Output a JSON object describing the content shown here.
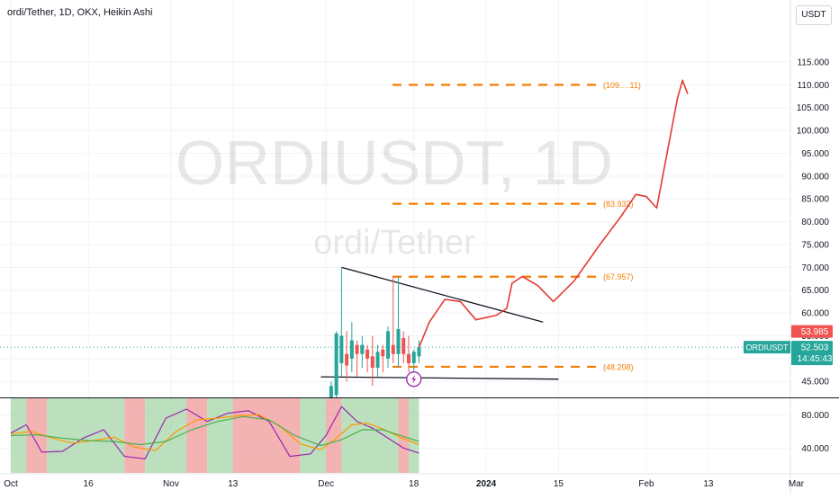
{
  "header": {
    "title": "ordi/Tether, 1D, OKX, Heikin Ashi",
    "currency": "USDT"
  },
  "watermark": {
    "symbol": "ORDIUSDT, 1D",
    "name": "ordi/Tether"
  },
  "colors": {
    "up": "#26a69a",
    "down": "#ef5350",
    "projection": "#e53935",
    "levels": "#f57c00",
    "trendline": "#131722",
    "last_price_line": "#26a69a",
    "stoch_k": "#9c27b0",
    "stoch_d": "#ff9800",
    "stoch_ma": "#4caf50",
    "zone_bull": "#a5d6a7",
    "zone_bear": "#ef9a9a"
  },
  "chart_data": {
    "type": "candlestick",
    "price_axis": {
      "ticks": [
        45,
        50,
        55,
        60,
        65,
        70,
        75,
        80,
        85,
        90,
        95,
        100,
        105,
        110,
        115
      ],
      "tick_labels": [
        "45.000",
        "50.000",
        "55.000",
        "60.000",
        "65.000",
        "70.000",
        "75.000",
        "80.000",
        "85.000",
        "90.000",
        "95.000",
        "100.000",
        "105.000",
        "110.000",
        "115.000"
      ],
      "range": [
        41.5,
        121.5
      ]
    },
    "time_axis": {
      "labels": [
        "Oct",
        "16",
        "Nov",
        "13",
        "Dec",
        "18",
        "2024",
        "15",
        "Feb",
        "13",
        "Mar"
      ],
      "dates": [
        "2023-10-01",
        "2023-10-16",
        "2023-11-01",
        "2023-11-13",
        "2023-12-01",
        "2023-12-18",
        "2024-01-01",
        "2024-01-15",
        "2024-02-01",
        "2024-02-13",
        "2024-03-01"
      ]
    },
    "candles": [
      {
        "date": "2023-12-02",
        "open": 40.0,
        "high": 45.0,
        "low": 40.0,
        "close": 44.0
      },
      {
        "date": "2023-12-03",
        "open": 42.0,
        "high": 56.0,
        "low": 41.0,
        "close": 55.5
      },
      {
        "date": "2023-12-04",
        "open": 49.0,
        "high": 70.0,
        "low": 46.0,
        "close": 55.0
      },
      {
        "date": "2023-12-05",
        "open": 51.0,
        "high": 56.0,
        "low": 45.0,
        "close": 48.5
      },
      {
        "date": "2023-12-06",
        "open": 50.0,
        "high": 58.0,
        "low": 47.0,
        "close": 54.0
      },
      {
        "date": "2023-12-07",
        "open": 53.0,
        "high": 54.0,
        "low": 46.0,
        "close": 51.0
      },
      {
        "date": "2023-12-08",
        "open": 51.0,
        "high": 55.0,
        "low": 48.0,
        "close": 53.0
      },
      {
        "date": "2023-12-09",
        "open": 52.0,
        "high": 53.0,
        "low": 47.0,
        "close": 50.0
      },
      {
        "date": "2023-12-10",
        "open": 50.5,
        "high": 55.0,
        "low": 44.0,
        "close": 48.0
      },
      {
        "date": "2023-12-11",
        "open": 48.0,
        "high": 53.0,
        "low": 46.0,
        "close": 51.5
      },
      {
        "date": "2023-12-12",
        "open": 52.0,
        "high": 53.0,
        "low": 47.0,
        "close": 50.5
      },
      {
        "date": "2023-12-13",
        "open": 50.0,
        "high": 57.0,
        "low": 48.0,
        "close": 56.0
      },
      {
        "date": "2023-12-14",
        "open": 53.0,
        "high": 68.0,
        "low": 49.0,
        "close": 51.0
      },
      {
        "date": "2023-12-15",
        "open": 51.0,
        "high": 68.0,
        "low": 48.0,
        "close": 56.5
      },
      {
        "date": "2023-12-16",
        "open": 54.5,
        "high": 56.0,
        "low": 49.0,
        "close": 51.0
      },
      {
        "date": "2023-12-17",
        "open": 51.0,
        "high": 55.0,
        "low": 47.0,
        "close": 49.0
      },
      {
        "date": "2023-12-18",
        "open": 49.0,
        "high": 52.0,
        "low": 47.0,
        "close": 51.5
      },
      {
        "date": "2023-12-19",
        "open": 50.5,
        "high": 54.0,
        "low": 49.0,
        "close": 52.5
      }
    ],
    "levels": [
      {
        "price": 110.0,
        "label": "(109.…11)"
      },
      {
        "price": 83.932,
        "label": "(83.932)"
      },
      {
        "price": 67.957,
        "label": "(67.957)"
      },
      {
        "price": 48.208,
        "label": "(48.208)"
      }
    ],
    "trendlines": [
      {
        "from": {
          "date": "2023-12-04",
          "price": 70.0
        },
        "to": {
          "date": "2024-01-12",
          "price": 58.0
        }
      },
      {
        "from": {
          "date": "2023-11-30",
          "price": 46.0
        },
        "to": {
          "date": "2024-01-15",
          "price": 45.5
        }
      }
    ],
    "projection": [
      {
        "date": "2023-12-19",
        "price": 52.5
      },
      {
        "date": "2023-12-21",
        "price": 58.0
      },
      {
        "date": "2023-12-24",
        "price": 63.0
      },
      {
        "date": "2023-12-27",
        "price": 62.5
      },
      {
        "date": "2023-12-30",
        "price": 58.5
      },
      {
        "date": "2024-01-03",
        "price": 59.5
      },
      {
        "date": "2024-01-05",
        "price": 61.0
      },
      {
        "date": "2024-01-06",
        "price": 66.5
      },
      {
        "date": "2024-01-08",
        "price": 68.0
      },
      {
        "date": "2024-01-11",
        "price": 66.0
      },
      {
        "date": "2024-01-14",
        "price": 62.5
      },
      {
        "date": "2024-01-18",
        "price": 67.0
      },
      {
        "date": "2024-01-23",
        "price": 75.0
      },
      {
        "date": "2024-01-27",
        "price": 81.0
      },
      {
        "date": "2024-01-30",
        "price": 86.0
      },
      {
        "date": "2024-02-01",
        "price": 85.5
      },
      {
        "date": "2024-02-03",
        "price": 83.0
      },
      {
        "date": "2024-02-05",
        "price": 95.0
      },
      {
        "date": "2024-02-07",
        "price": 107.0
      },
      {
        "date": "2024-02-08",
        "price": 111.0
      },
      {
        "date": "2024-02-09",
        "price": 108.0
      }
    ],
    "price_labels": [
      {
        "name": "previous-close",
        "text": "53.985",
        "price": 53.985,
        "color": "#ef5350"
      },
      {
        "name": "last-price",
        "text": "52.503",
        "price": 52.503,
        "color": "#26a69a",
        "symbol": "ORDIUSDT",
        "countdown": "14:45:43"
      }
    ],
    "oscillator": {
      "ticks": [
        40,
        80
      ],
      "tick_labels": [
        "40.000",
        "80.000"
      ],
      "range": [
        10,
        100
      ],
      "zones": [
        {
          "from": "2023-10-01",
          "to": "2023-10-04",
          "type": "bull"
        },
        {
          "from": "2023-10-04",
          "to": "2023-10-08",
          "type": "bear"
        },
        {
          "from": "2023-10-08",
          "to": "2023-10-23",
          "type": "bull"
        },
        {
          "from": "2023-10-23",
          "to": "2023-10-27",
          "type": "bear"
        },
        {
          "from": "2023-10-27",
          "to": "2023-11-04",
          "type": "bull"
        },
        {
          "from": "2023-11-04",
          "to": "2023-11-08",
          "type": "bear"
        },
        {
          "from": "2023-11-08",
          "to": "2023-11-13",
          "type": "bull"
        },
        {
          "from": "2023-11-13",
          "to": "2023-11-26",
          "type": "bear"
        },
        {
          "from": "2023-11-26",
          "to": "2023-12-01",
          "type": "bull"
        },
        {
          "from": "2023-12-01",
          "to": "2023-12-04",
          "type": "bear"
        },
        {
          "from": "2023-12-04",
          "to": "2023-12-15",
          "type": "bull"
        },
        {
          "from": "2023-12-15",
          "to": "2023-12-17",
          "type": "bear"
        },
        {
          "from": "2023-12-17",
          "to": "2023-12-19",
          "type": "bull"
        }
      ],
      "series": [
        {
          "name": "k",
          "dates": [
            "2023-10-01",
            "2023-10-04",
            "2023-10-07",
            "2023-10-11",
            "2023-10-15",
            "2023-10-19",
            "2023-10-23",
            "2023-10-27",
            "2023-10-31",
            "2023-11-04",
            "2023-11-08",
            "2023-11-12",
            "2023-11-16",
            "2023-11-20",
            "2023-11-24",
            "2023-11-28",
            "2023-12-01",
            "2023-12-04",
            "2023-12-07",
            "2023-12-10",
            "2023-12-13",
            "2023-12-16",
            "2023-12-19"
          ],
          "values": [
            58,
            68,
            35,
            36,
            52,
            62,
            30,
            27,
            76,
            87,
            72,
            82,
            85,
            72,
            30,
            33,
            55,
            90,
            72,
            64,
            52,
            40,
            34
          ]
        },
        {
          "name": "d",
          "dates": [
            "2023-10-01",
            "2023-10-05",
            "2023-10-09",
            "2023-10-13",
            "2023-10-17",
            "2023-10-21",
            "2023-10-25",
            "2023-10-29",
            "2023-11-02",
            "2023-11-06",
            "2023-11-10",
            "2023-11-14",
            "2023-11-18",
            "2023-11-22",
            "2023-11-26",
            "2023-11-30",
            "2023-12-03",
            "2023-12-06",
            "2023-12-09",
            "2023-12-12",
            "2023-12-15",
            "2023-12-19"
          ],
          "values": [
            57,
            60,
            52,
            46,
            49,
            53,
            41,
            37,
            60,
            74,
            76,
            79,
            80,
            67,
            45,
            38,
            52,
            68,
            70,
            63,
            54,
            44
          ]
        },
        {
          "name": "ma",
          "dates": [
            "2023-10-01",
            "2023-10-06",
            "2023-10-11",
            "2023-10-16",
            "2023-10-21",
            "2023-10-26",
            "2023-10-31",
            "2023-11-05",
            "2023-11-10",
            "2023-11-15",
            "2023-11-20",
            "2023-11-25",
            "2023-11-30",
            "2023-12-04",
            "2023-12-08",
            "2023-12-12",
            "2023-12-16",
            "2023-12-19"
          ],
          "values": [
            55,
            56,
            52,
            49,
            48,
            44,
            48,
            62,
            72,
            78,
            74,
            55,
            43,
            50,
            62,
            62,
            54,
            48
          ]
        }
      ]
    }
  }
}
